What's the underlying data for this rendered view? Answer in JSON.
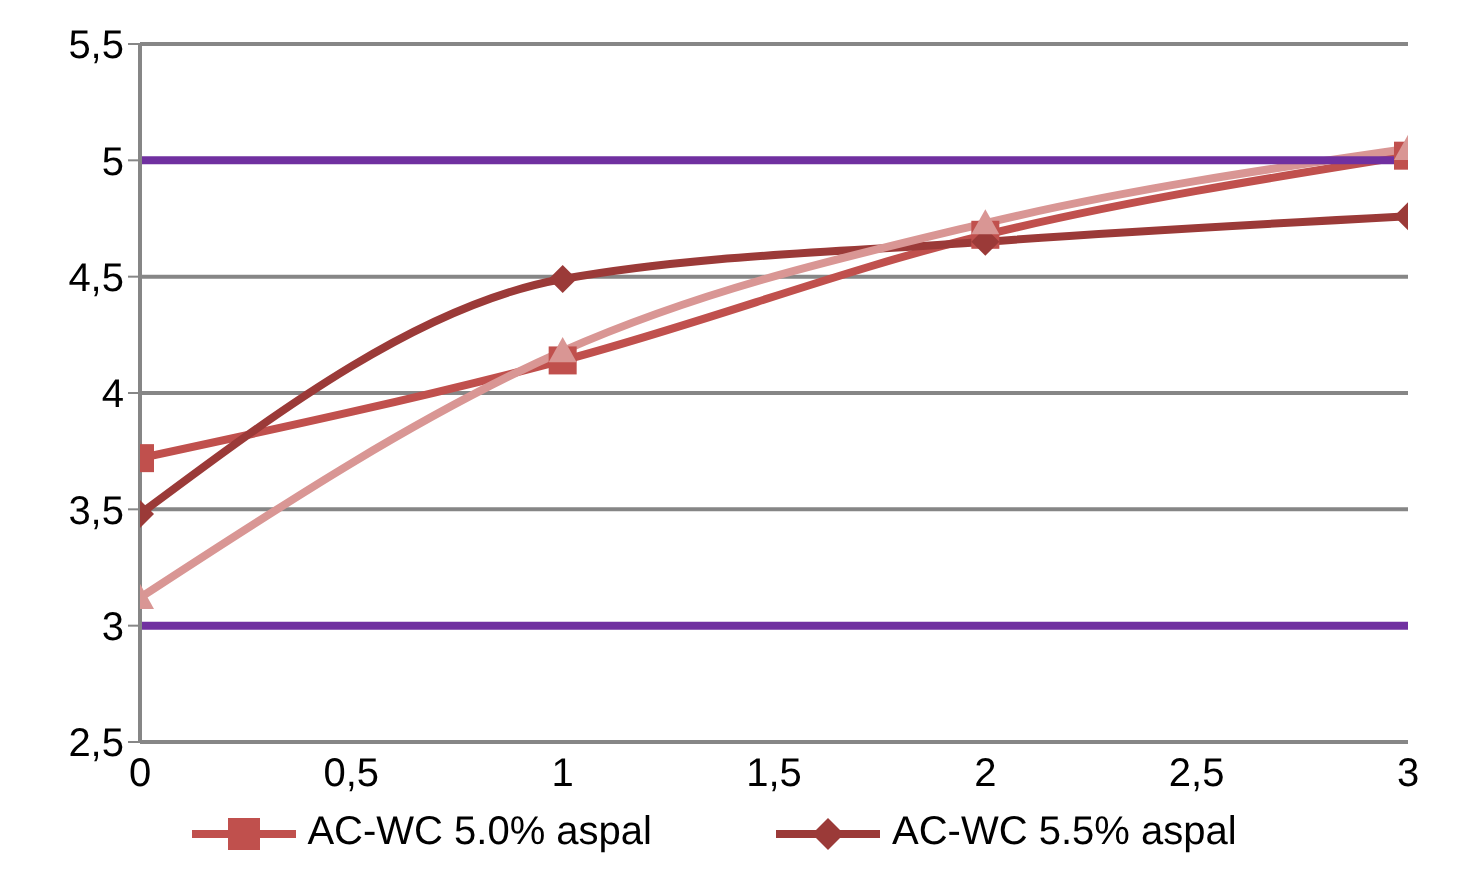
{
  "chart_data": {
    "type": "line",
    "x": [
      0,
      1,
      2,
      3
    ],
    "xlim": [
      0,
      3
    ],
    "xticks": [
      0,
      {
        "value": 0.5,
        "label": "0,5"
      },
      1,
      {
        "value": 1.5,
        "label": "1,5"
      },
      2,
      {
        "value": 2.5,
        "label": "2,5"
      },
      3
    ],
    "ylim": [
      2.5,
      5.5
    ],
    "yticks": [
      {
        "value": 2.5,
        "label": "2,5"
      },
      3,
      {
        "value": 3.5,
        "label": "3,5"
      },
      4,
      {
        "value": 4.5,
        "label": "4,5"
      },
      5,
      {
        "value": 5.5,
        "label": "5,5"
      }
    ],
    "grid": "y",
    "legend": "bottom",
    "series": [
      {
        "name": "AC-WC 5.0% aspal",
        "color": "#c0504d",
        "marker": "square",
        "values": [
          3.72,
          4.14,
          4.68,
          5.02
        ]
      },
      {
        "name": "AC-WC 5.5% aspal",
        "color": "#9b3a38",
        "marker": "diamond",
        "values": [
          3.48,
          4.49,
          4.65,
          4.76
        ]
      },
      {
        "color": "#d99694",
        "marker": "triangle",
        "values": [
          3.12,
          4.18,
          4.73,
          5.05
        ]
      },
      {
        "color": "#7030a0",
        "marker": "none",
        "values": [
          5,
          5,
          5,
          5
        ]
      },
      {
        "color": "#7030a0",
        "marker": "none",
        "values": [
          3,
          3,
          3,
          3
        ]
      }
    ]
  }
}
